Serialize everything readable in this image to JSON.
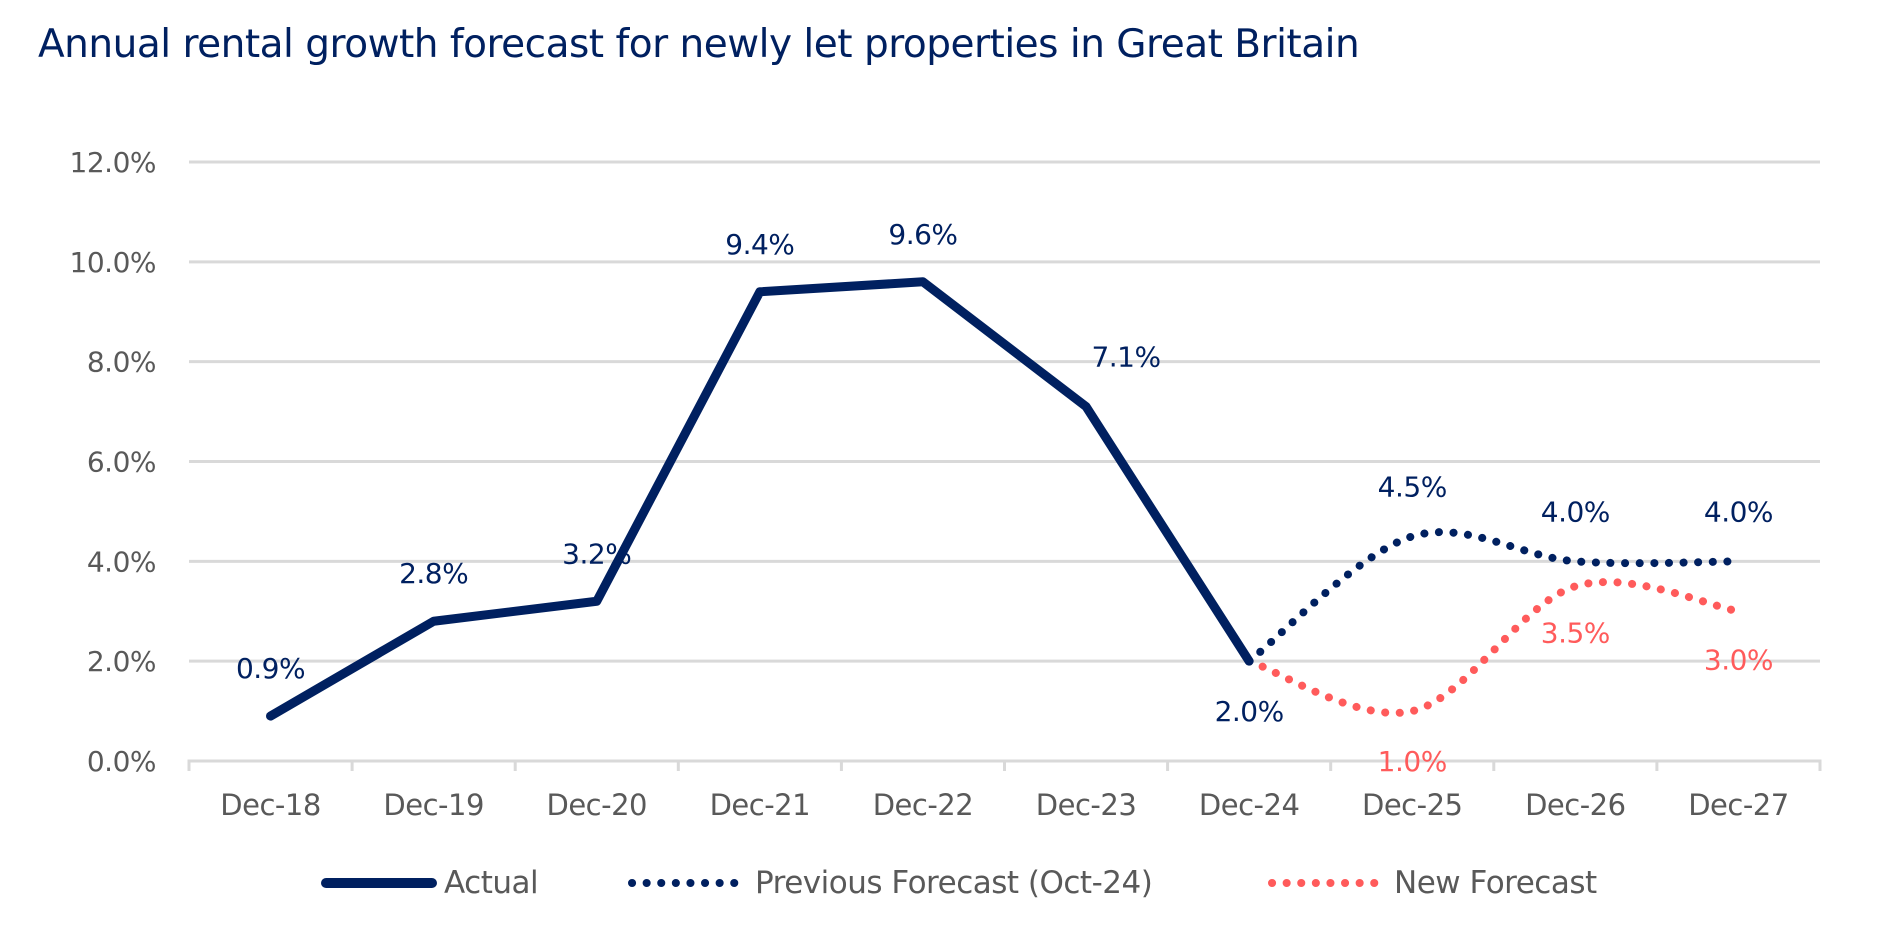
{
  "chart_data": {
    "type": "line",
    "title": "Annual rental growth forecast for newly let properties in Great Britain",
    "xlabel": "",
    "ylabel": "",
    "categories": [
      "Dec-18",
      "Dec-19",
      "Dec-20",
      "Dec-21",
      "Dec-22",
      "Dec-23",
      "Dec-24",
      "Dec-25",
      "Dec-26",
      "Dec-27"
    ],
    "ylim": [
      0,
      12
    ],
    "yticks": [
      0,
      2,
      4,
      6,
      8,
      10,
      12
    ],
    "ytick_labels": [
      "0.0%",
      "2.0%",
      "4.0%",
      "6.0%",
      "8.0%",
      "10.0%",
      "12.0%"
    ],
    "grid": true,
    "legend_position": "bottom",
    "series": [
      {
        "name": "Actual",
        "style": "solid",
        "color": "#002060",
        "values": [
          0.9,
          2.8,
          3.2,
          9.4,
          9.6,
          7.1,
          2.0,
          null,
          null,
          null
        ],
        "labels": [
          "0.9%",
          "2.8%",
          "3.2%",
          "9.4%",
          "9.6%",
          "7.1%",
          "2.0%",
          null,
          null,
          null
        ]
      },
      {
        "name": "Previous Forecast (Oct-24)",
        "style": "dotted",
        "color": "#002060",
        "values": [
          null,
          null,
          null,
          null,
          null,
          null,
          2.0,
          4.5,
          4.0,
          4.0
        ],
        "labels": [
          null,
          null,
          null,
          null,
          null,
          null,
          null,
          "4.5%",
          "4.0%",
          "4.0%"
        ]
      },
      {
        "name": "New Forecast",
        "style": "dotted",
        "color": "#FF5B5B",
        "values": [
          null,
          null,
          null,
          null,
          null,
          null,
          2.0,
          1.0,
          3.5,
          3.0
        ],
        "labels": [
          null,
          null,
          null,
          null,
          null,
          null,
          null,
          "1.0%",
          "3.5%",
          "3.0%"
        ]
      }
    ]
  },
  "colors": {
    "title": "#002060",
    "axis_text": "#595959",
    "grid": "#D9D9D9",
    "actual": "#002060",
    "previous_forecast": "#002060",
    "new_forecast": "#FF5B5B"
  }
}
